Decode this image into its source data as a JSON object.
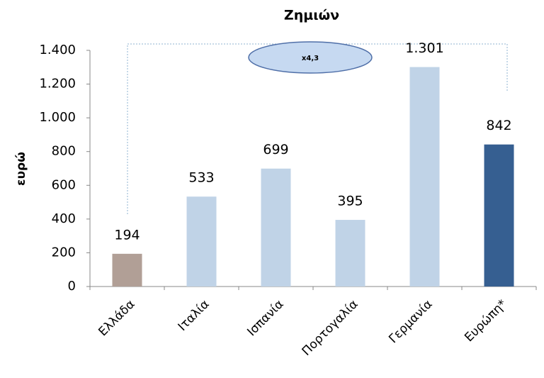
{
  "chart_data": {
    "type": "bar",
    "title": "Ζημιών",
    "y_label": "ευρώ",
    "annotation": "x4,3",
    "categories": [
      "Ελλάδα",
      "Ιταλία",
      "Ισπανία",
      "Πορτογαλία",
      "Γερμανία",
      "Ευρώπη*"
    ],
    "values": [
      194,
      533,
      699,
      395,
      1301,
      842
    ],
    "value_labels": [
      "194",
      "533",
      "699",
      "395",
      "1.301",
      "842"
    ],
    "colors": [
      "#b19f96",
      "#c0d3e7",
      "#c0d3e7",
      "#c0d3e7",
      "#c0d3e7",
      "#365f91"
    ],
    "ylim": [
      0,
      1400
    ],
    "yticks": [
      0,
      200,
      400,
      600,
      800,
      {
        "value": 1000,
        "label": "1.000"
      },
      {
        "value": 1200,
        "label": "1.200"
      },
      {
        "value": 1400,
        "label": "1.400"
      }
    ],
    "grid": false
  }
}
